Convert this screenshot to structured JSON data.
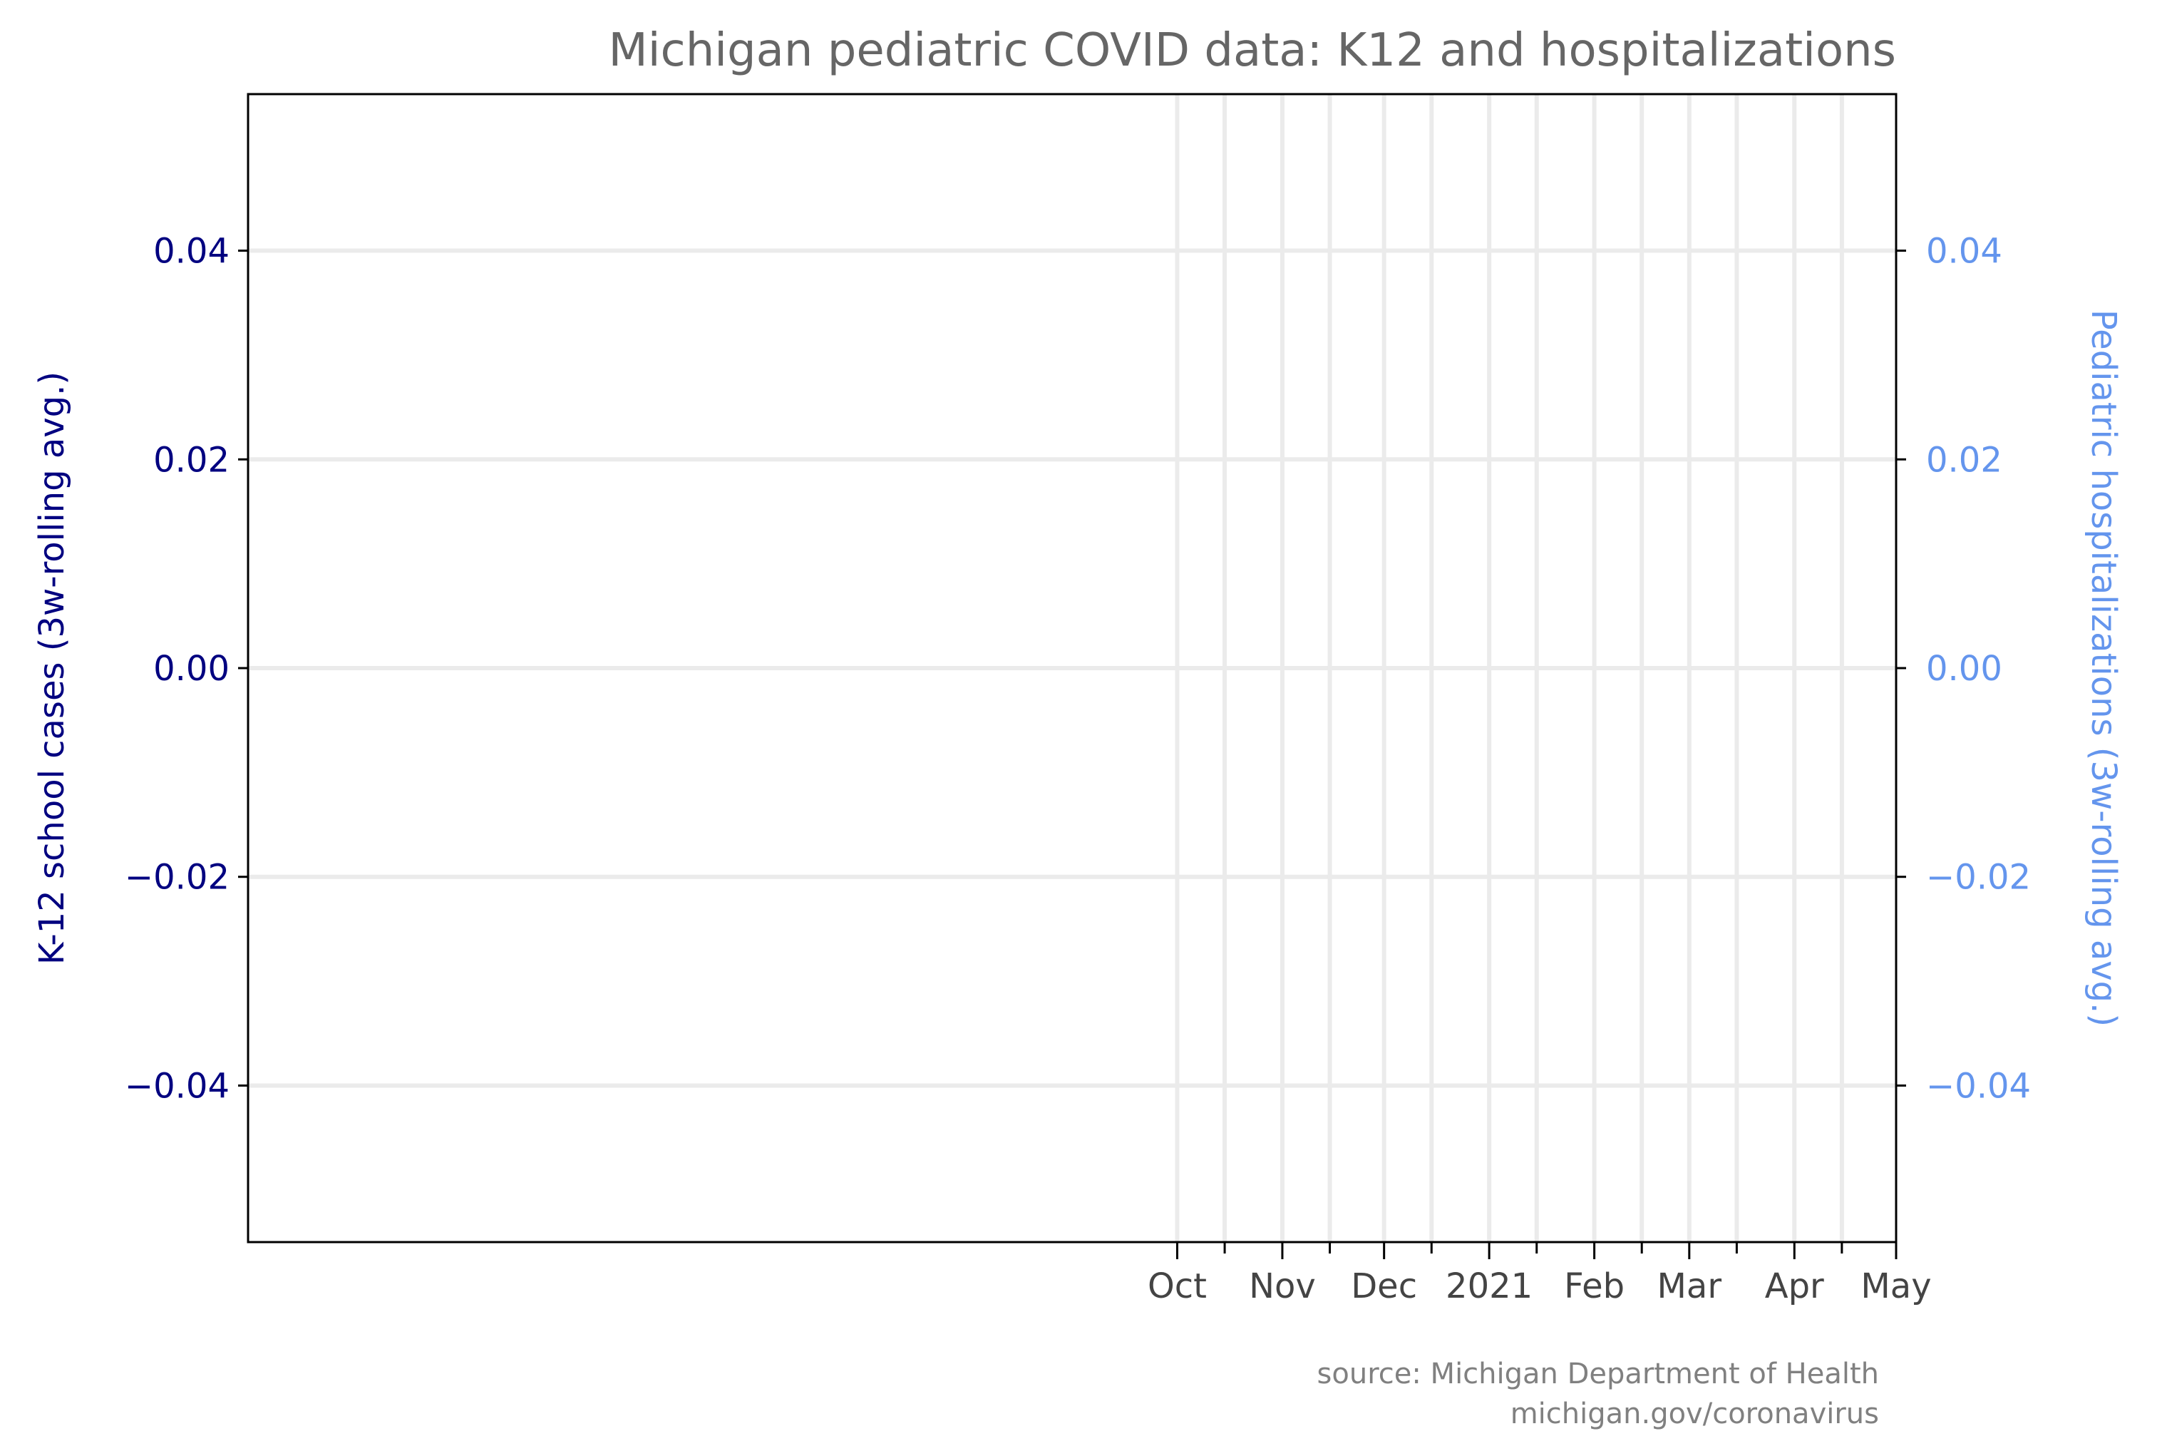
{
  "chart_data": {
    "type": "line",
    "title": "Michigan pediatric COVID data: K12 and hospitalizations",
    "ylabel_left": "K-12 school cases (3w-rolling avg.)",
    "ylabel_right": "Pediatric hospitalizations (3w-rolling avg.)",
    "ylim": [
      -0.055,
      0.055
    ],
    "yticks": [
      -0.04,
      -0.02,
      0.0,
      0.02,
      0.04
    ],
    "ytick_labels": [
      "−0.04",
      "−0.02",
      "0.00",
      "0.02",
      "0.04"
    ],
    "xlim": [
      "2020-01-01",
      "2021-05-01"
    ],
    "x_major_ticks": [
      {
        "date": "2020-10-01",
        "label": "Oct"
      },
      {
        "date": "2020-11-01",
        "label": "Nov"
      },
      {
        "date": "2020-12-01",
        "label": "Dec"
      },
      {
        "date": "2021-01-01",
        "label": "2021"
      },
      {
        "date": "2021-02-01",
        "label": "Feb"
      },
      {
        "date": "2021-03-01",
        "label": "Mar"
      },
      {
        "date": "2021-04-01",
        "label": "Apr"
      },
      {
        "date": "2021-05-01",
        "label": "May"
      }
    ],
    "x_minor_ticks": [
      "2020-10-15",
      "2020-11-15",
      "2020-12-15",
      "2021-01-15",
      "2021-02-15",
      "2021-03-15",
      "2021-04-15"
    ],
    "grid": true,
    "series": [
      {
        "axis": "left",
        "color": "#000080",
        "x": [],
        "y": []
      },
      {
        "axis": "right",
        "color": "#6495ED",
        "x": [],
        "y": []
      }
    ]
  },
  "source": {
    "line1": "source: Michigan Department of Health",
    "line2": "michigan.gov/coronavirus"
  }
}
